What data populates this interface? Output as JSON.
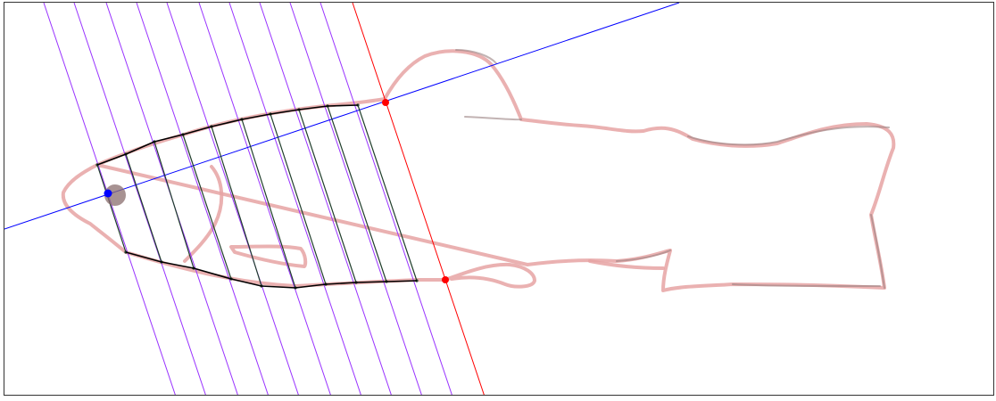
{
  "diagram": {
    "colors": {
      "outline": "#e6a3a3",
      "outline_shadow": "#9a8080",
      "parallel_lines": "#9933ff",
      "boundary_line": "#ff0000",
      "axis_line": "#0000ff",
      "cross_sections": "#1f3d2b",
      "body_contour": "#000000",
      "eye_marker": "#0000ff",
      "endpoint_marker": "#ff0000",
      "eye_fill": "#8a6e6e"
    },
    "elements": [
      "fish-sketch-outline",
      "parallel-guide-lines",
      "cut-boundary-line",
      "body-axis-line",
      "cross-section-segments",
      "traced-body-contour",
      "eye-point",
      "boundary-endpoints"
    ]
  }
}
